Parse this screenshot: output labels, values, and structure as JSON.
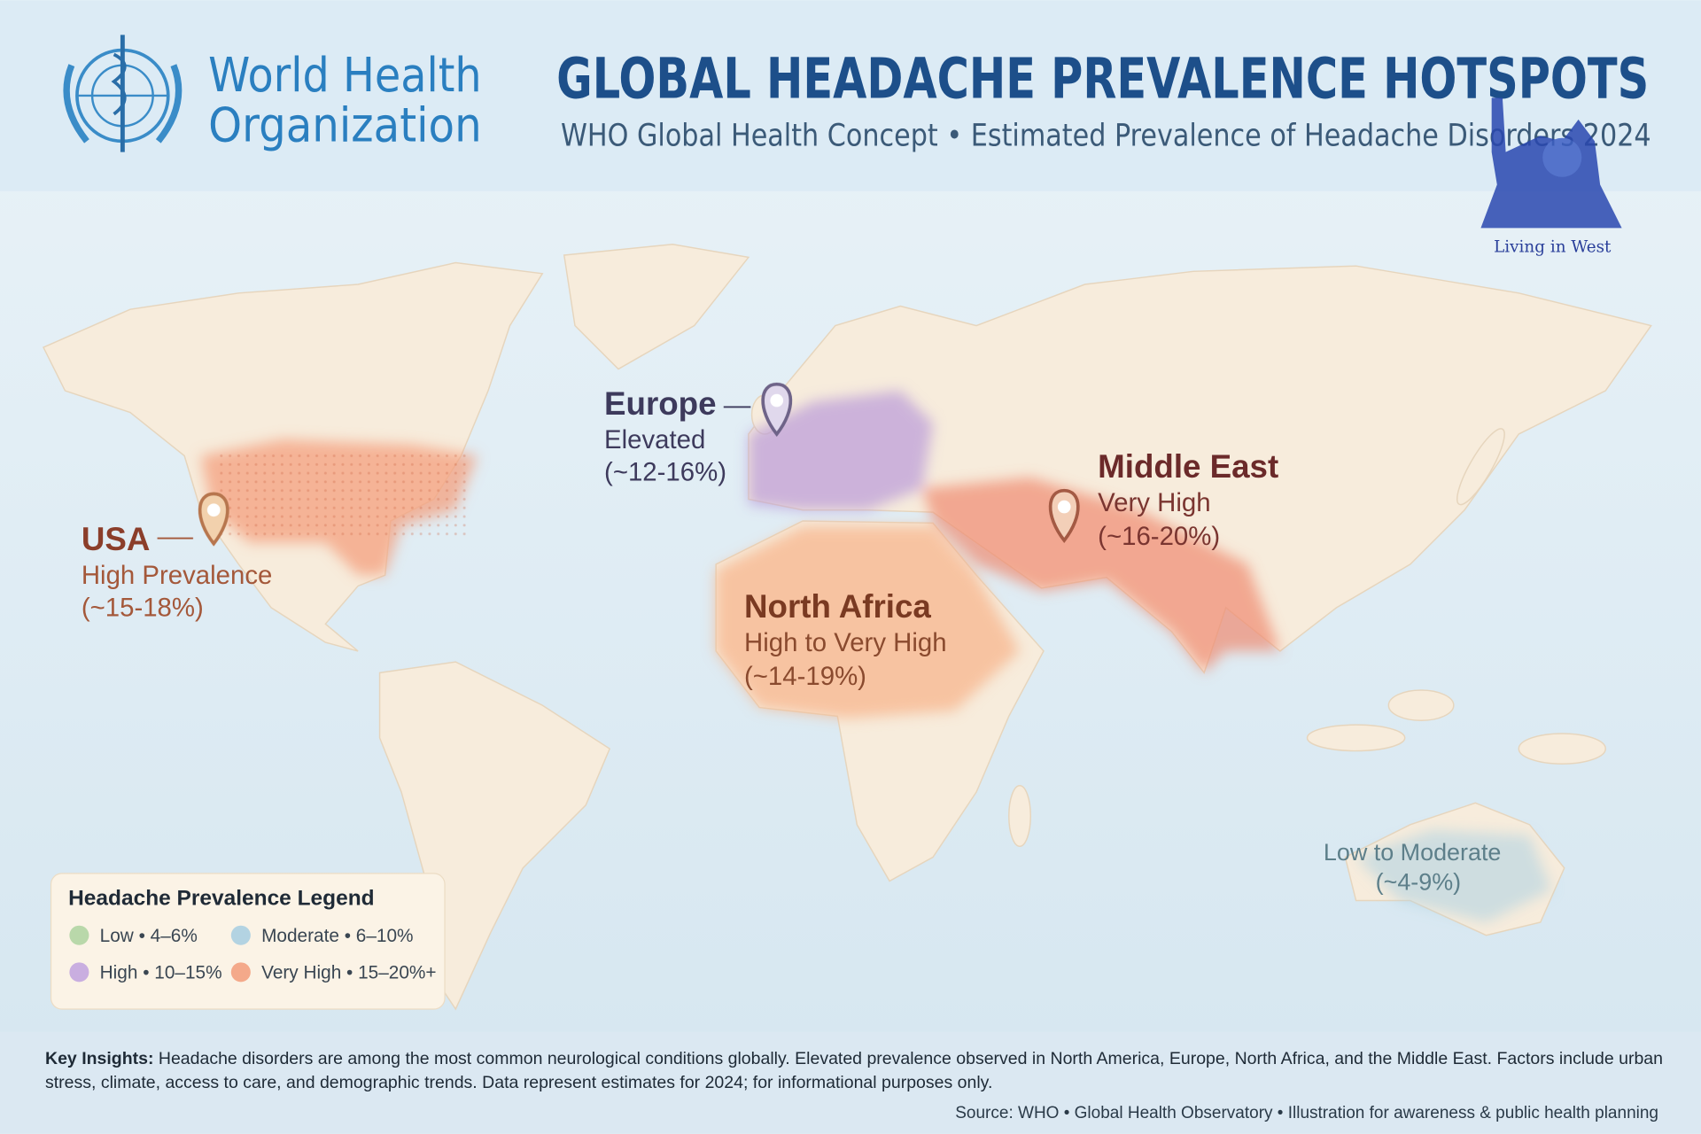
{
  "header": {
    "org_line1": "World Health",
    "org_line2": "Organization",
    "title": "GLOBAL HEADACHE PREVALENCE HOTSPOTS",
    "subtitle": "WHO Global Health Concept • Estimated Prevalence of Headache Disorders 2024"
  },
  "watermark": "Living in West",
  "regions": [
    {
      "name": "USA",
      "level": "High Prevalence",
      "range": "(~15-18%)"
    },
    {
      "name": "Europe",
      "level": "Elevated",
      "range": "(~12-16%)"
    },
    {
      "name": "Middle East",
      "level": "Very High",
      "range": "(~16-20%)"
    },
    {
      "name": "North Africa",
      "level": "High to Very High",
      "range": "(~14-19%)"
    },
    {
      "level": "Low to Moderate",
      "range": "(~4-9%)"
    }
  ],
  "legend": {
    "title": "Headache Prevalence Legend",
    "items": [
      {
        "label": "Low • 4–6%",
        "color": "#b9d8aa"
      },
      {
        "label": "Moderate • 6–10%",
        "color": "#b3d3e2"
      },
      {
        "label": "High • 10–15%",
        "color": "#c9aee0"
      },
      {
        "label": "Very High • 15–20%+",
        "color": "#f4a98a"
      }
    ]
  },
  "footer": {
    "insights_label": "Key Insights:",
    "insights_text": "Headache disorders are among the most common neurological conditions globally. Elevated prevalence observed in North America, Europe, North Africa, and the Middle East. Factors include urban stress, climate, access to care, and demographic trends. Data represent estimates for 2024; for informational purposes only.",
    "source": "Source: WHO • Global Health Observatory • Illustration for awareness & public health planning"
  }
}
